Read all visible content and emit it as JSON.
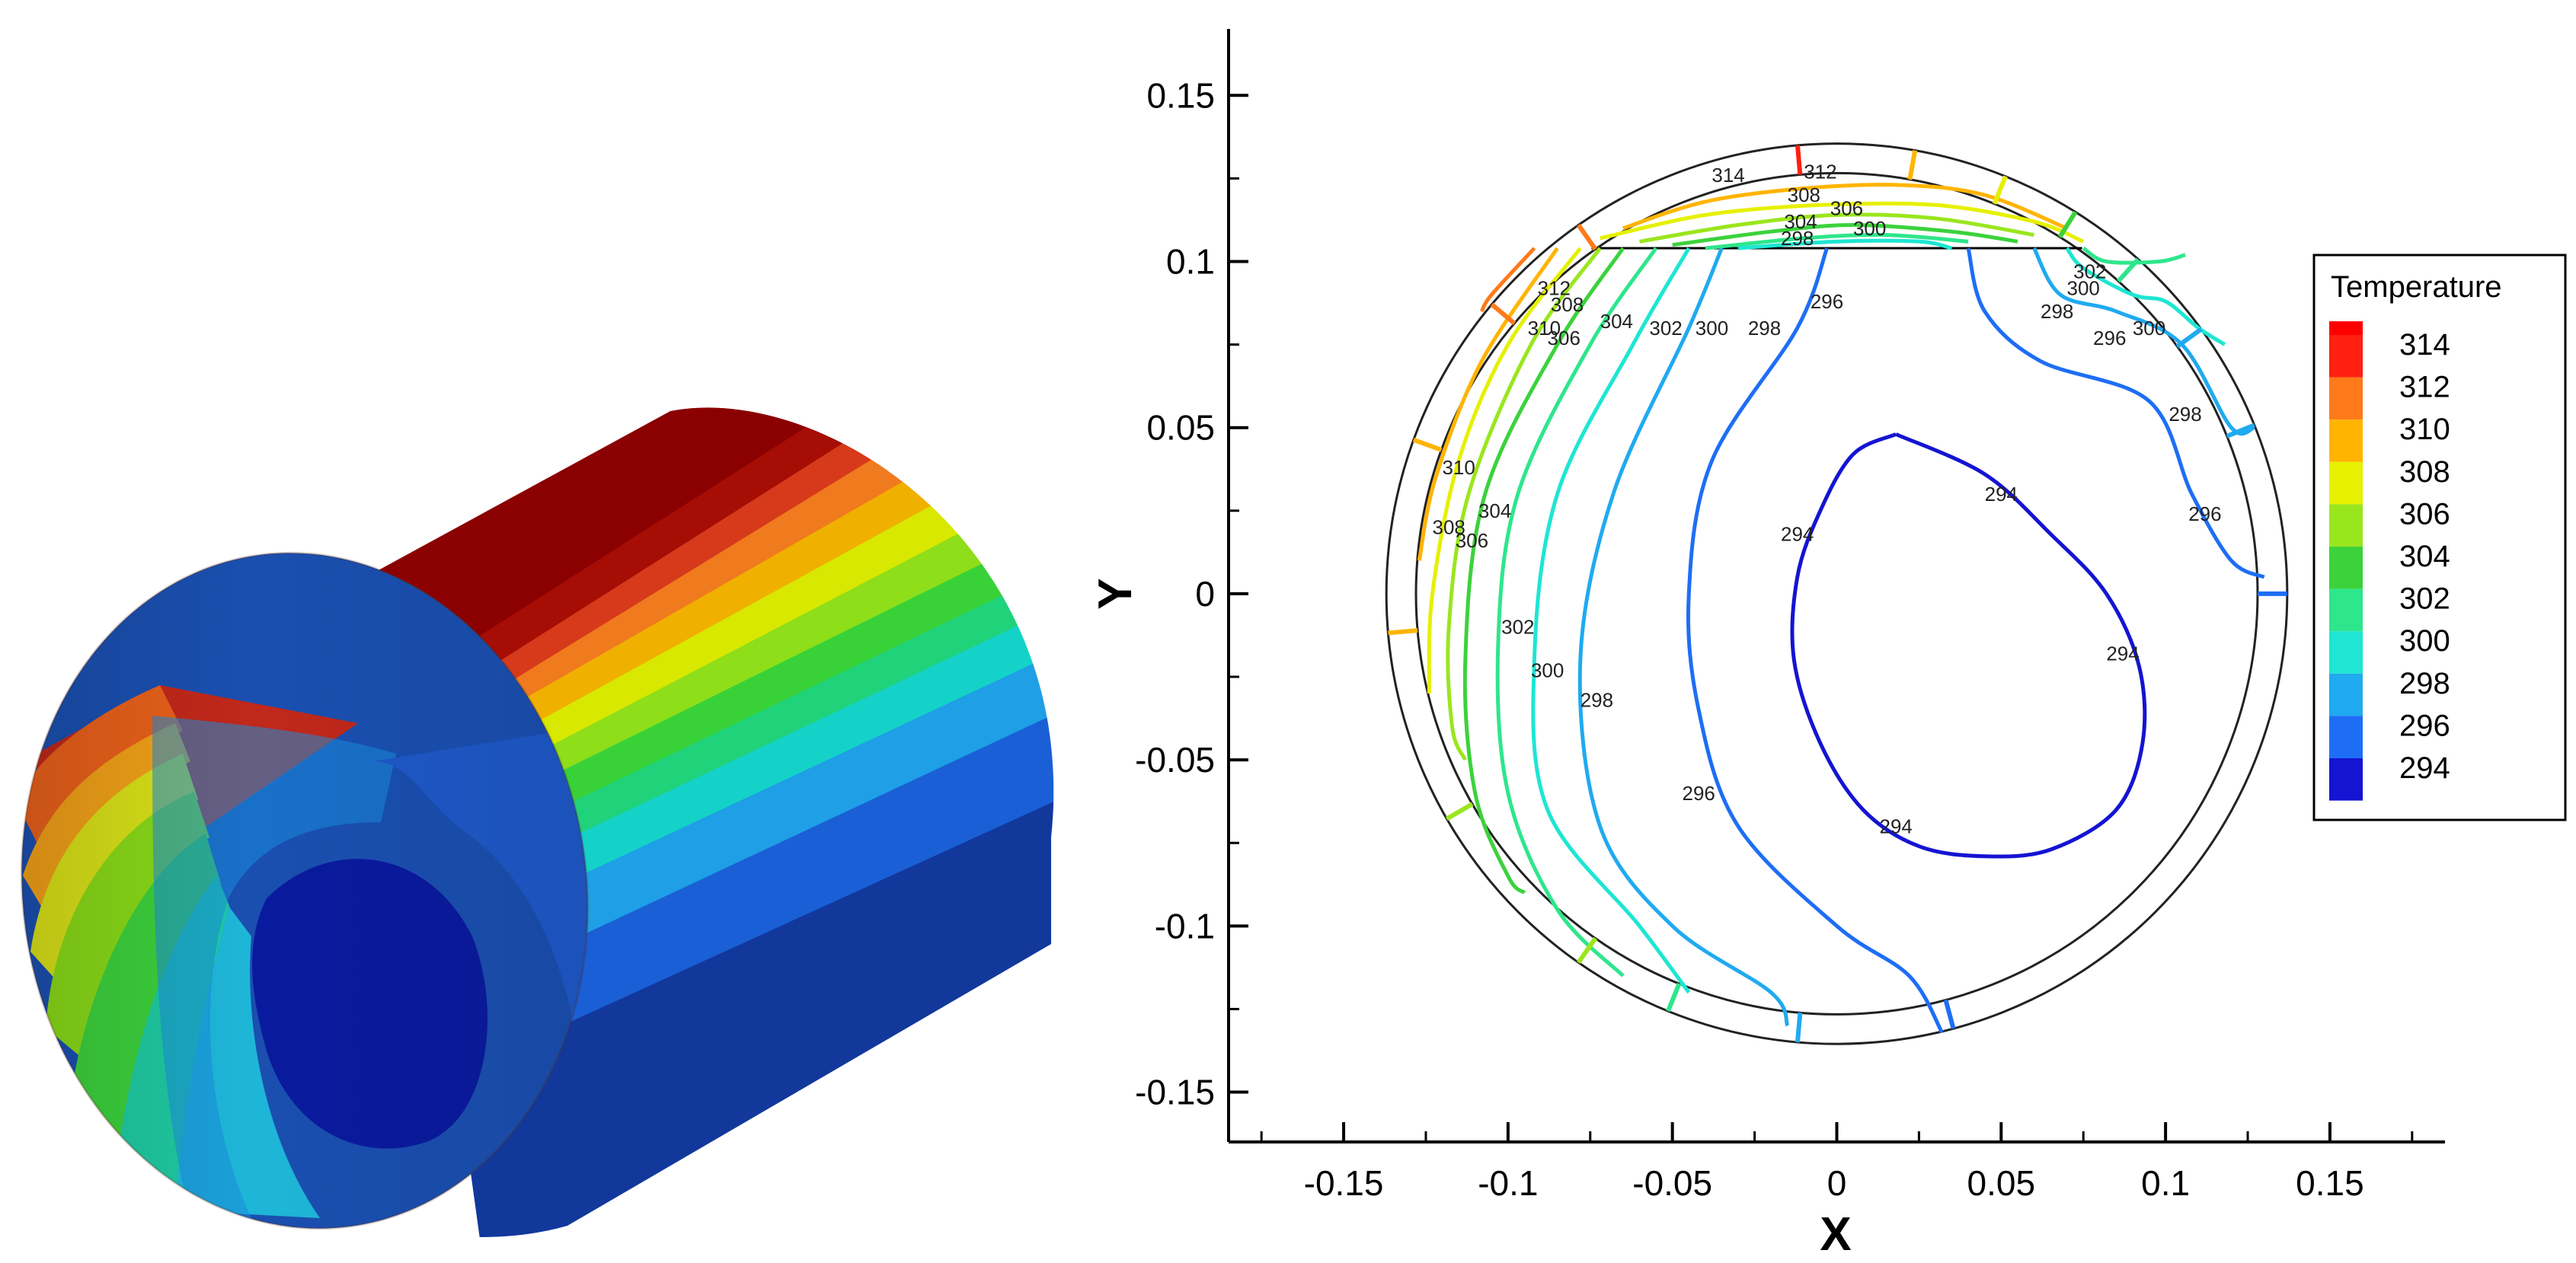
{
  "chart_data": [
    {
      "type": "3d-surface",
      "description_colors": [
        "#8b0000",
        "#d7191c",
        "#f46d43",
        "#fdae61",
        "#e6f598",
        "#66c2a5",
        "#00d2d2",
        "#3288bd",
        "#1f4fb5",
        "#0a1e9a"
      ]
    },
    {
      "type": "contour",
      "xlabel": "X",
      "ylabel": "Y",
      "xlim": [
        -0.185,
        0.185
      ],
      "ylim": [
        -0.165,
        0.17
      ],
      "xticks": [
        -0.15,
        -0.1,
        -0.05,
        0,
        0.05,
        0.1,
        0.15
      ],
      "xtick_labels": [
        "-0.15",
        "-0.1",
        "-0.05",
        "0",
        "0.05",
        "0.1",
        "0.15"
      ],
      "yticks": [
        0.15,
        0.1,
        0.05,
        0,
        -0.05,
        -0.1,
        -0.15
      ],
      "ytick_labels": [
        "0.15",
        "0.1",
        "0.05",
        "0",
        "-0.05",
        "-0.1",
        "-0.15"
      ],
      "outer_radius": 0.137,
      "inner_radius": 0.128,
      "flat_top_y": 0.104,
      "legend": {
        "title": "Temperature",
        "levels": [
          314,
          312,
          310,
          308,
          306,
          304,
          302,
          300,
          298,
          296,
          294
        ],
        "labels": [
          "314",
          "312",
          "310",
          "308",
          "306",
          "304",
          "302",
          "300",
          "298",
          "296",
          "294"
        ],
        "colors": [
          "#ff2010",
          "#ff7a1a",
          "#ffb400",
          "#e6f000",
          "#9ae61e",
          "#3cd23c",
          "#2ee68c",
          "#1ee6d2",
          "#20aaf0",
          "#1e6ef5",
          "#1414d2"
        ],
        "top_color": "#ff0000",
        "placement": "right"
      },
      "contours": [
        {
          "level": 294,
          "label": "294",
          "color": "#1414d2",
          "points": [
            [
              0.018,
              0.048
            ],
            [
              0.045,
              0.036
            ],
            [
              0.065,
              0.018
            ],
            [
              0.082,
              0.0
            ],
            [
              0.092,
              -0.022
            ],
            [
              0.093,
              -0.045
            ],
            [
              0.085,
              -0.065
            ],
            [
              0.065,
              -0.077
            ],
            [
              0.045,
              -0.079
            ],
            [
              0.025,
              -0.076
            ],
            [
              0.008,
              -0.065
            ],
            [
              -0.005,
              -0.045
            ],
            [
              -0.013,
              -0.02
            ],
            [
              -0.012,
              0.005
            ],
            [
              -0.005,
              0.025
            ],
            [
              0.005,
              0.042
            ],
            [
              0.018,
              0.048
            ]
          ]
        },
        {
          "level": 296,
          "label": "296",
          "color": "#1e6ef5",
          "points": [
            [
              -0.003,
              0.104
            ],
            [
              -0.012,
              0.08
            ],
            [
              -0.038,
              0.04
            ],
            [
              -0.045,
              0.0
            ],
            [
              -0.042,
              -0.035
            ],
            [
              -0.03,
              -0.07
            ],
            [
              0.0,
              -0.1
            ],
            [
              0.022,
              -0.115
            ],
            [
              0.032,
              -0.132
            ]
          ]
        },
        {
          "level": 296,
          "label": "296",
          "color": "#1e6ef5",
          "points": [
            [
              0.04,
              0.104
            ],
            [
              0.045,
              0.085
            ],
            [
              0.062,
              0.07
            ],
            [
              0.095,
              0.058
            ],
            [
              0.108,
              0.03
            ],
            [
              0.12,
              0.01
            ],
            [
              0.13,
              0.005
            ]
          ]
        },
        {
          "level": 298,
          "label": "298",
          "color": "#20aaf0",
          "points": [
            [
              -0.035,
              0.104
            ],
            [
              -0.045,
              0.08
            ],
            [
              -0.068,
              0.03
            ],
            [
              -0.078,
              -0.02
            ],
            [
              -0.072,
              -0.07
            ],
            [
              -0.05,
              -0.1
            ],
            [
              -0.02,
              -0.12
            ],
            [
              -0.015,
              -0.13
            ]
          ]
        },
        {
          "level": 298,
          "label": "298",
          "color": "#20aaf0",
          "points": [
            [
              0.06,
              0.104
            ],
            [
              0.068,
              0.09
            ],
            [
              0.085,
              0.085
            ],
            [
              0.105,
              0.075
            ],
            [
              0.12,
              0.05
            ],
            [
              0.127,
              0.05
            ]
          ]
        },
        {
          "level": 300,
          "label": "300",
          "color": "#1ee6d2",
          "points": [
            [
              -0.045,
              0.104
            ],
            [
              -0.062,
              0.075
            ],
            [
              -0.085,
              0.03
            ],
            [
              -0.092,
              -0.02
            ],
            [
              -0.088,
              -0.065
            ],
            [
              -0.06,
              -0.1
            ],
            [
              -0.045,
              -0.12
            ]
          ]
        },
        {
          "level": 300,
          "label": "300",
          "color": "#1ee6d2",
          "points": [
            [
              0.07,
              0.104
            ],
            [
              0.075,
              0.098
            ],
            [
              0.09,
              0.09
            ],
            [
              0.1,
              0.088
            ],
            [
              0.11,
              0.08
            ],
            [
              0.118,
              0.075
            ]
          ]
        },
        {
          "level": 302,
          "label": "302",
          "color": "#2ee68c",
          "points": [
            [
              -0.055,
              0.104
            ],
            [
              -0.075,
              0.075
            ],
            [
              -0.097,
              0.03
            ],
            [
              -0.103,
              -0.015
            ],
            [
              -0.1,
              -0.06
            ],
            [
              -0.085,
              -0.095
            ],
            [
              -0.065,
              -0.115
            ]
          ]
        },
        {
          "level": 302,
          "label": "302",
          "color": "#2ee68c",
          "points": [
            [
              0.075,
              0.104
            ],
            [
              0.082,
              0.1
            ],
            [
              0.098,
              0.1
            ],
            [
              0.106,
              0.102
            ]
          ]
        },
        {
          "level": 304,
          "label": "304",
          "color": "#3cd23c",
          "points": [
            [
              -0.065,
              0.104
            ],
            [
              -0.085,
              0.075
            ],
            [
              -0.107,
              0.03
            ],
            [
              -0.113,
              -0.02
            ],
            [
              -0.11,
              -0.06
            ],
            [
              -0.1,
              -0.085
            ],
            [
              -0.095,
              -0.09
            ]
          ]
        },
        {
          "level": 306,
          "label": "306",
          "color": "#9ae61e",
          "points": [
            [
              -0.072,
              0.104
            ],
            [
              -0.093,
              0.075
            ],
            [
              -0.112,
              0.03
            ],
            [
              -0.118,
              -0.01
            ],
            [
              -0.117,
              -0.04
            ],
            [
              -0.113,
              -0.05
            ]
          ]
        },
        {
          "level": 308,
          "label": "308",
          "color": "#e6f000",
          "points": [
            [
              -0.078,
              0.104
            ],
            [
              -0.1,
              0.075
            ],
            [
              -0.115,
              0.04
            ],
            [
              -0.123,
              0.0
            ],
            [
              -0.124,
              -0.03
            ]
          ]
        },
        {
          "level": 310,
          "label": "310",
          "color": "#ffb400",
          "points": [
            [
              -0.085,
              0.104
            ],
            [
              -0.108,
              0.07
            ],
            [
              -0.122,
              0.035
            ],
            [
              -0.127,
              0.01
            ]
          ]
        },
        {
          "level": 312,
          "label": "312",
          "color": "#ff7a1a",
          "points": [
            [
              -0.092,
              0.104
            ],
            [
              -0.105,
              0.09
            ],
            [
              -0.108,
              0.085
            ]
          ]
        },
        {
          "level": 310,
          "label": "310",
          "color": "#ffb400",
          "points": [
            [
              -0.065,
              0.11
            ],
            [
              -0.04,
              0.118
            ],
            [
              -0.01,
              0.122
            ],
            [
              0.02,
              0.123
            ],
            [
              0.045,
              0.12
            ],
            [
              0.07,
              0.11
            ]
          ]
        },
        {
          "level": 308,
          "label": "308",
          "color": "#e6f000",
          "points": [
            [
              -0.072,
              0.107
            ],
            [
              -0.04,
              0.114
            ],
            [
              -0.005,
              0.117
            ],
            [
              0.03,
              0.117
            ],
            [
              0.06,
              0.112
            ],
            [
              0.075,
              0.106
            ]
          ]
        },
        {
          "level": 306,
          "label": "306",
          "color": "#9ae61e",
          "points": [
            [
              -0.06,
              0.106
            ],
            [
              -0.03,
              0.111
            ],
            [
              0.0,
              0.114
            ],
            [
              0.03,
              0.113
            ],
            [
              0.06,
              0.108
            ]
          ]
        },
        {
          "level": 304,
          "label": "304",
          "color": "#3cd23c",
          "points": [
            [
              -0.05,
              0.105
            ],
            [
              -0.02,
              0.109
            ],
            [
              0.005,
              0.111
            ],
            [
              0.035,
              0.109
            ],
            [
              0.055,
              0.106
            ]
          ]
        },
        {
          "level": 302,
          "label": "302",
          "color": "#2ee68c",
          "points": [
            [
              -0.04,
              0.104
            ],
            [
              -0.01,
              0.107
            ],
            [
              0.015,
              0.108
            ],
            [
              0.04,
              0.106
            ]
          ]
        },
        {
          "level": 300,
          "label": "300",
          "color": "#1ee6d2",
          "points": [
            [
              -0.03,
              0.104
            ],
            [
              0.0,
              0.106
            ],
            [
              0.025,
              0.106
            ],
            [
              0.035,
              0.104
            ]
          ]
        }
      ],
      "contour_labels": [
        {
          "text": "314",
          "x": -0.033,
          "y": 0.126
        },
        {
          "text": "312",
          "x": -0.005,
          "y": 0.127
        },
        {
          "text": "308",
          "x": -0.01,
          "y": 0.12
        },
        {
          "text": "306",
          "x": 0.003,
          "y": 0.116
        },
        {
          "text": "304",
          "x": -0.011,
          "y": 0.112
        },
        {
          "text": "300",
          "x": 0.01,
          "y": 0.11
        },
        {
          "text": "298",
          "x": -0.012,
          "y": 0.107
        },
        {
          "text": "312",
          "x": -0.086,
          "y": 0.092
        },
        {
          "text": "310",
          "x": -0.089,
          "y": 0.08
        },
        {
          "text": "308",
          "x": -0.082,
          "y": 0.087
        },
        {
          "text": "306",
          "x": -0.083,
          "y": 0.077
        },
        {
          "text": "304",
          "x": -0.067,
          "y": 0.082
        },
        {
          "text": "302",
          "x": -0.052,
          "y": 0.08
        },
        {
          "text": "300",
          "x": -0.038,
          "y": 0.08
        },
        {
          "text": "298",
          "x": -0.022,
          "y": 0.08
        },
        {
          "text": "296",
          "x": -0.003,
          "y": 0.088
        },
        {
          "text": "310",
          "x": -0.115,
          "y": 0.038
        },
        {
          "text": "308",
          "x": -0.118,
          "y": 0.02
        },
        {
          "text": "306",
          "x": -0.111,
          "y": 0.016
        },
        {
          "text": "304",
          "x": -0.104,
          "y": 0.025
        },
        {
          "text": "302",
          "x": -0.097,
          "y": -0.01
        },
        {
          "text": "300",
          "x": -0.088,
          "y": -0.023
        },
        {
          "text": "298",
          "x": -0.073,
          "y": -0.032
        },
        {
          "text": "296",
          "x": -0.042,
          "y": -0.06
        },
        {
          "text": "294",
          "x": -0.012,
          "y": 0.018
        },
        {
          "text": "294",
          "x": 0.05,
          "y": 0.03
        },
        {
          "text": "294",
          "x": 0.087,
          "y": -0.018
        },
        {
          "text": "294",
          "x": 0.018,
          "y": -0.07
        },
        {
          "text": "296",
          "x": 0.083,
          "y": 0.077
        },
        {
          "text": "298",
          "x": 0.067,
          "y": 0.085
        },
        {
          "text": "300",
          "x": 0.075,
          "y": 0.092
        },
        {
          "text": "302",
          "x": 0.077,
          "y": 0.097
        },
        {
          "text": "300",
          "x": 0.095,
          "y": 0.08
        },
        {
          "text": "298",
          "x": 0.106,
          "y": 0.054
        },
        {
          "text": "296",
          "x": 0.112,
          "y": 0.024
        }
      ]
    }
  ]
}
